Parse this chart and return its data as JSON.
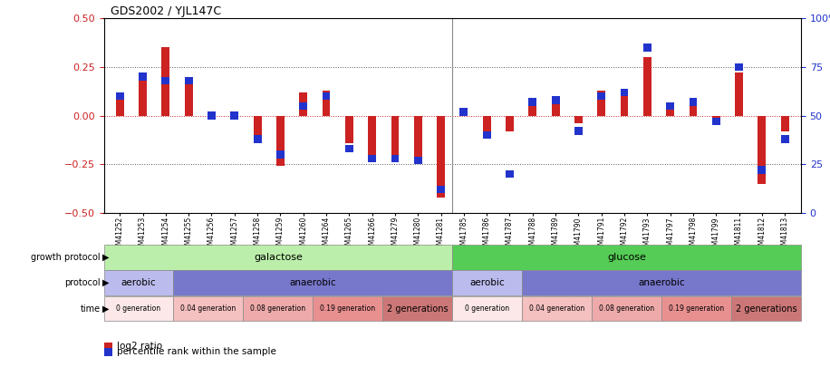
{
  "title": "GDS2002 / YJL147C",
  "samples": [
    "GSM41252",
    "GSM41253",
    "GSM41254",
    "GSM41255",
    "GSM41256",
    "GSM41257",
    "GSM41258",
    "GSM41259",
    "GSM41260",
    "GSM41264",
    "GSM41265",
    "GSM41266",
    "GSM41279",
    "GSM41280",
    "GSM41281",
    "GSM41785",
    "GSM41786",
    "GSM41787",
    "GSM41788",
    "GSM41789",
    "GSM41790",
    "GSM41791",
    "GSM41792",
    "GSM41793",
    "GSM41797",
    "GSM41798",
    "GSM41799",
    "GSM41811",
    "GSM41812",
    "GSM41813"
  ],
  "log2ratio": [
    0.08,
    0.18,
    0.35,
    0.17,
    0.02,
    -0.01,
    -0.14,
    -0.26,
    0.12,
    0.13,
    -0.14,
    -0.22,
    -0.24,
    -0.22,
    -0.42,
    0.04,
    -0.09,
    -0.08,
    0.05,
    0.09,
    -0.04,
    0.13,
    0.11,
    0.3,
    0.06,
    0.06,
    -0.03,
    0.22,
    -0.35,
    -0.08
  ],
  "percentile": [
    60,
    70,
    68,
    68,
    50,
    50,
    38,
    30,
    55,
    60,
    33,
    28,
    28,
    27,
    12,
    52,
    40,
    20,
    57,
    58,
    42,
    60,
    62,
    85,
    55,
    57,
    47,
    75,
    22,
    38
  ],
  "ylim_left": [
    -0.5,
    0.5
  ],
  "ylim_right": [
    0,
    100
  ],
  "yticks_left": [
    -0.5,
    -0.25,
    0.0,
    0.25,
    0.5
  ],
  "yticks_right": [
    0,
    25,
    50,
    75,
    100
  ],
  "bar_color_red": "#cc2222",
  "bar_color_blue": "#2233cc",
  "dotted_line_color": "#555555",
  "growth_protocol_galactose": "galactose",
  "growth_protocol_glucose": "glucose",
  "growth_protocol_galactose_color": "#bbeeaa",
  "growth_protocol_glucose_color": "#55cc55",
  "protocol_aerobic_color": "#bbbbee",
  "protocol_anaerobic_color": "#7777cc",
  "time_colors": [
    "#fce8e8",
    "#f5c0c0",
    "#eeaaaa",
    "#e89090",
    "#cc7777"
  ],
  "time_labels": [
    "0 generation",
    "0.04 generation",
    "0.08 generation",
    "0.19 generation",
    "2 generations"
  ],
  "background_color": "#ffffff",
  "n_galactose": 15,
  "n_glucose": 15,
  "aerobic_galactose_count": 3,
  "anaerobic_galactose_count": 12,
  "aerobic_glucose_count": 3,
  "anaerobic_glucose_count": 12,
  "time_group_sizes_galactose": [
    3,
    3,
    3,
    3,
    3
  ],
  "time_group_sizes_glucose": [
    3,
    3,
    3,
    3,
    3
  ]
}
